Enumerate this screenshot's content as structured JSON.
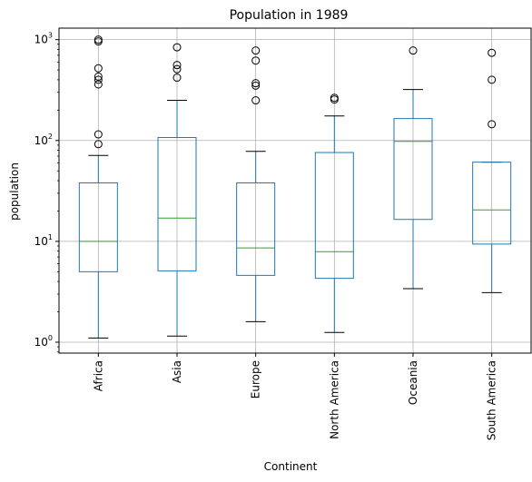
{
  "chart_data": {
    "type": "box",
    "title": "Population in 1989",
    "xlabel": "Continent",
    "ylabel": "population",
    "y_scale": "log",
    "ylim": [
      0.78,
      1300
    ],
    "y_ticks": [
      {
        "value": 1,
        "base": "10",
        "exp": "0"
      },
      {
        "value": 10,
        "base": "10",
        "exp": "1"
      },
      {
        "value": 100,
        "base": "10",
        "exp": "2"
      },
      {
        "value": 1000,
        "base": "10",
        "exp": "3"
      }
    ],
    "grid": true,
    "colors": {
      "box": "#1f77b4",
      "median": "#2ca02c",
      "outlier": "#000000",
      "grid": "#b0b0b0"
    },
    "categories": [
      "Africa",
      "Asia",
      "Europe",
      "North America",
      "Oceania",
      "South America"
    ],
    "boxes": [
      {
        "whisker_low": 1.1,
        "q1": 5.0,
        "median": 10.0,
        "q3": 38.0,
        "whisker_high": 71.0,
        "fliers": [
          92,
          115,
          360,
          400,
          430,
          520,
          960,
          1000
        ]
      },
      {
        "whisker_low": 1.15,
        "q1": 5.1,
        "median": 17.0,
        "q3": 107.0,
        "whisker_high": 250.0,
        "fliers": [
          420,
          510,
          560,
          840
        ]
      },
      {
        "whisker_low": 1.6,
        "q1": 4.6,
        "median": 8.6,
        "q3": 38.0,
        "whisker_high": 78.0,
        "fliers": [
          250,
          350,
          370,
          620,
          780
        ]
      },
      {
        "whisker_low": 1.25,
        "q1": 4.3,
        "median": 7.9,
        "q3": 76.0,
        "whisker_high": 175.0,
        "fliers": [
          255,
          265
        ]
      },
      {
        "whisker_low": 3.4,
        "q1": 16.5,
        "median": 98.0,
        "q3": 165.0,
        "whisker_high": 320.0,
        "fliers": [
          780
        ]
      },
      {
        "whisker_low": 3.1,
        "q1": 9.4,
        "median": 20.5,
        "q3": 61.0,
        "whisker_high": 61.0,
        "fliers": [
          145,
          400,
          740
        ]
      }
    ]
  }
}
